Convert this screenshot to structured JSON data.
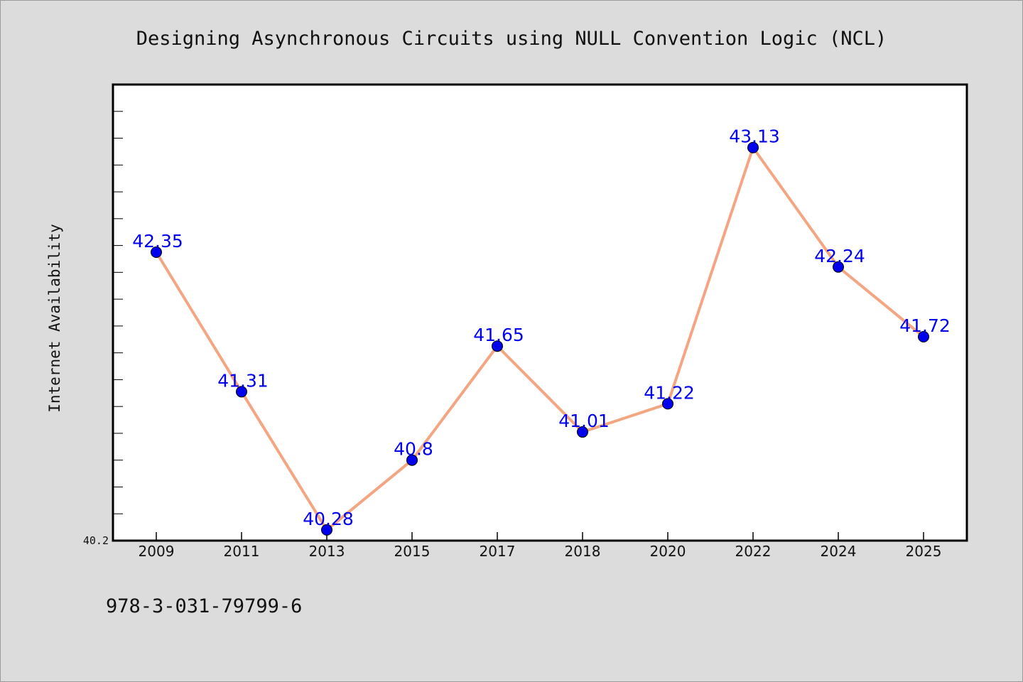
{
  "chart_data": {
    "type": "line",
    "title": "Designing Asynchronous Circuits using NULL Convention Logic (NCL)",
    "xlabel": "",
    "ylabel": "Internet Availability",
    "categories": [
      "2009",
      "2011",
      "2013",
      "2015",
      "2017",
      "2018",
      "2020",
      "2022",
      "2024",
      "2025"
    ],
    "values": [
      42.35,
      41.31,
      40.28,
      40.8,
      41.65,
      41.01,
      41.22,
      43.13,
      42.24,
      41.72
    ],
    "data_labels": [
      "42.35",
      "41.31",
      "40.28",
      "40.8",
      "41.65",
      "41.01",
      "41.22",
      "43.13",
      "42.24",
      "41.72"
    ],
    "ylim": [
      40.2,
      43.6
    ],
    "y_tick_labels": [
      "40.2"
    ],
    "grid": false,
    "legend": "none",
    "colors": {
      "line": "#f4a582",
      "marker": "#0000ee",
      "label": "#0000ee",
      "background": "#dcdcdc",
      "plot_background": "#ffffff"
    }
  },
  "footer": {
    "isbn": "978-3-031-79799-6"
  }
}
